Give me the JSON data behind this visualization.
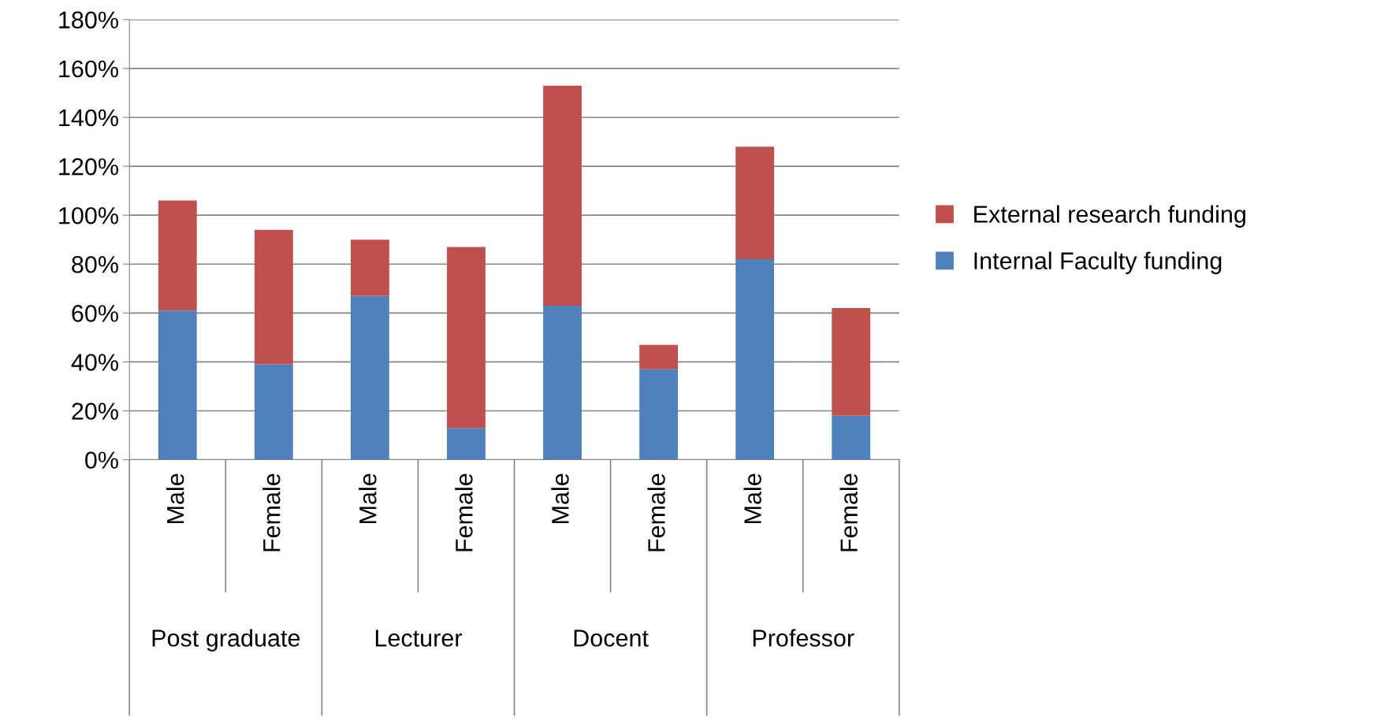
{
  "chart_data": {
    "type": "bar",
    "stacked": true,
    "categories": [
      "Male",
      "Female",
      "Male",
      "Female",
      "Male",
      "Female",
      "Male",
      "Female"
    ],
    "annotations": [
      "Post graduate",
      "Lecturer",
      "Docent",
      "Professor"
    ],
    "series": [
      {
        "name": "Internal Faculty funding",
        "color": "#4f81bd",
        "values": [
          61,
          39,
          67,
          13,
          63,
          37,
          82,
          18
        ]
      },
      {
        "name": "External research funding",
        "color": "#c0504d",
        "values": [
          45,
          55,
          23,
          74,
          90,
          10,
          46,
          44
        ]
      }
    ],
    "ylim": [
      0,
      180
    ],
    "yticks": [
      {
        "value": 0,
        "label": "0%"
      },
      {
        "value": 20,
        "label": "20%"
      },
      {
        "value": 40,
        "label": "40%"
      },
      {
        "value": 60,
        "label": "60%"
      },
      {
        "value": 80,
        "label": "80%"
      },
      {
        "value": 100,
        "label": "100%"
      },
      {
        "value": 120,
        "label": "120%"
      },
      {
        "value": 140,
        "label": "140%"
      },
      {
        "value": 160,
        "label": "160%"
      },
      {
        "value": 180,
        "label": "180%"
      }
    ],
    "grid": "y",
    "legend": "right"
  }
}
